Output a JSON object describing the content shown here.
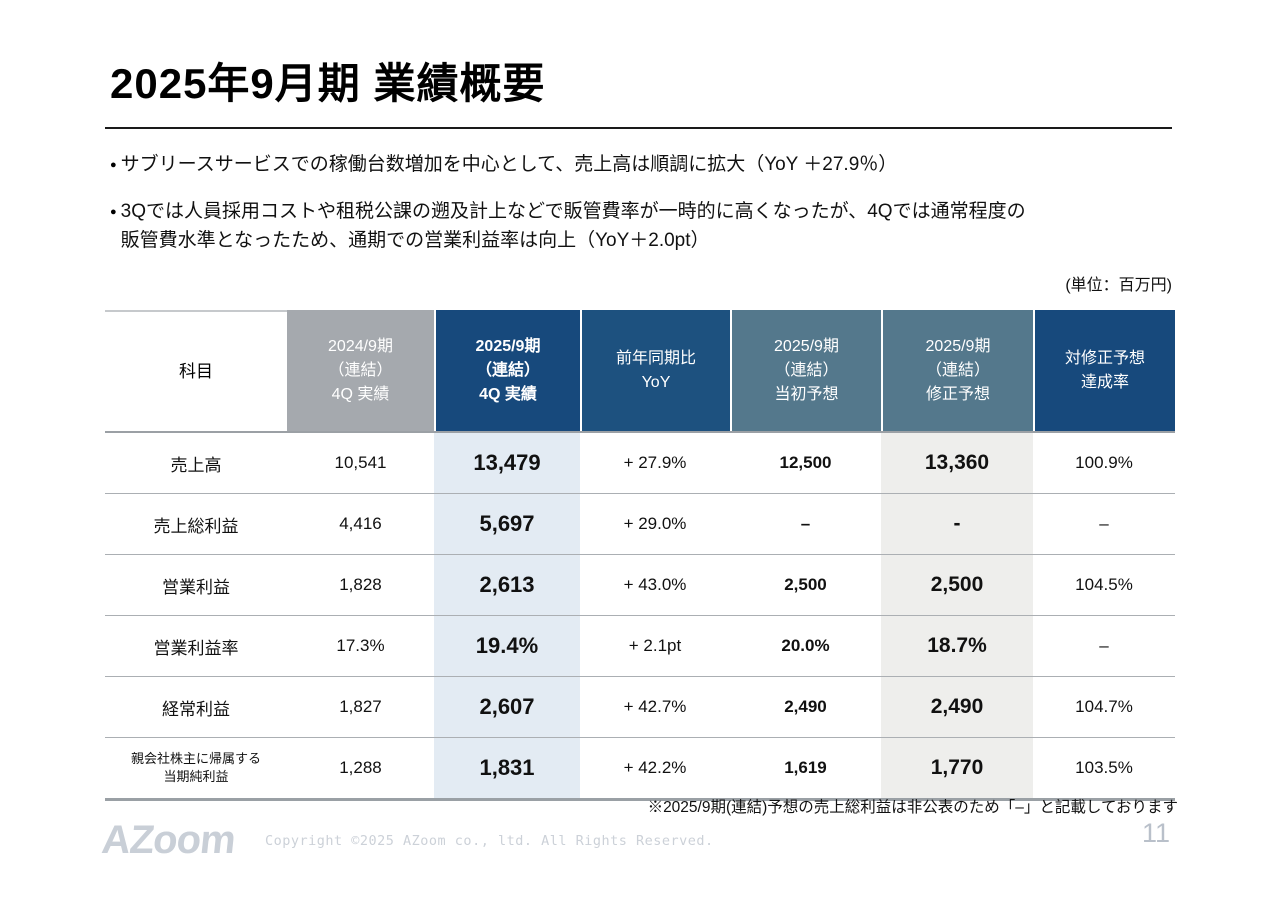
{
  "slide": {
    "title": "2025年9月期 業績概要",
    "bullet_marker": "●",
    "bullets": [
      {
        "text": "サブリースサービスでの稼働台数増加を中心として、売上高は順調に拡大（YoY ＋27.9％）"
      },
      {
        "text": "3Qでは人員採用コストや租税公課の遡及計上などで販管費率が一時的に高くなったが、4Qでは通常程度の\n販管費水準となったため、通期での営業利益率は向上（YoY＋2.0pt）"
      }
    ],
    "unit_note": "(単位：百万円)",
    "footnote": "※2025/9期(連結)予想の売上総利益は非公表のため「–」と記載しております",
    "footer": {
      "logo_text": "AZoom",
      "copyright": "Copyright ©2025 AZoom co., ltd. All Rights Reserved.",
      "page_number": "11"
    },
    "colors": {
      "navy": "#17497c",
      "navy_light": "#1d517f",
      "teal": "#54788c",
      "header_gray": "#a5a9ae",
      "highlight_blue": "#e3ebf3",
      "highlight_gray": "#eeeeec"
    }
  },
  "table": {
    "header": {
      "subject": "科目",
      "col_2024": "2024/9期\n（連結）\n4Q 実績",
      "col_2025": "2025/9期\n（連結）\n4Q 実績",
      "col_yoy": "前年同期比\nYoY",
      "col_initial": "2025/9期\n（連結）\n当初予想",
      "col_revised": "2025/9期\n（連結）\n修正予想",
      "col_achievement": "対修正予想\n達成率"
    },
    "rows": [
      {
        "label": "売上高",
        "fy2024": "10,541",
        "fy2025": "13,479",
        "yoy": "+ 27.9%",
        "initial": "12,500",
        "revised": "13,360",
        "achievement": "100.9%"
      },
      {
        "label": "売上総利益",
        "fy2024": "4,416",
        "fy2025": "5,697",
        "yoy": "+ 29.0%",
        "initial": "–",
        "revised": "-",
        "achievement": "–"
      },
      {
        "label": "営業利益",
        "fy2024": "1,828",
        "fy2025": "2,613",
        "yoy": "+ 43.0%",
        "initial": "2,500",
        "revised": "2,500",
        "achievement": "104.5%"
      },
      {
        "label": "営業利益率",
        "fy2024": "17.3%",
        "fy2025": "19.4%",
        "yoy": "+ 2.1pt",
        "initial": "20.0%",
        "revised": "18.7%",
        "achievement": "–"
      },
      {
        "label": "経常利益",
        "fy2024": "1,827",
        "fy2025": "2,607",
        "yoy": "+ 42.7%",
        "initial": "2,490",
        "revised": "2,490",
        "achievement": "104.7%"
      },
      {
        "label": "親会社株主に帰属する\n当期純利益",
        "fy2024": "1,288",
        "fy2025": "1,831",
        "yoy": "+ 42.2%",
        "initial": "1,619",
        "revised": "1,770",
        "achievement": "103.5%"
      }
    ]
  }
}
